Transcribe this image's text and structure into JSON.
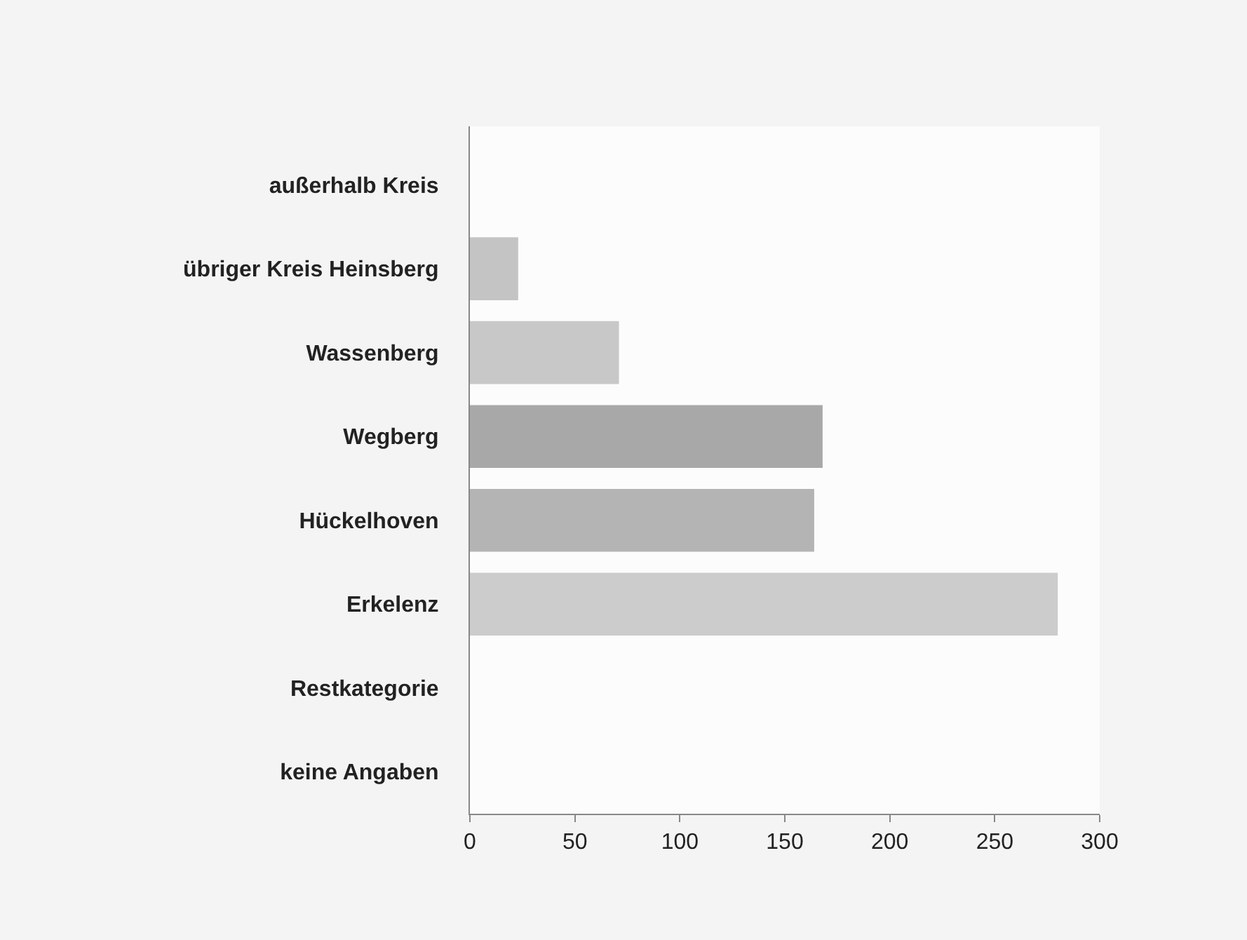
{
  "chart_data": {
    "type": "bar",
    "orientation": "horizontal",
    "categories": [
      "außerhalb Kreis",
      "übriger Kreis Heinsberg",
      "Wassenberg",
      "Wegberg",
      "Hückelhoven",
      "Erkelenz",
      "Restkategorie",
      "keine Angaben"
    ],
    "values": [
      0,
      23,
      71,
      168,
      164,
      280,
      0,
      0
    ],
    "colors": [
      "#5a5a5a",
      "#c4c4c4",
      "#c8c8c8",
      "#a8a8a8",
      "#b4b4b4",
      "#cccccc",
      "#8a8a8a",
      "#4a4a4a"
    ],
    "xlim": [
      0,
      300
    ],
    "xticks": [
      0,
      50,
      100,
      150,
      200,
      250,
      300
    ]
  }
}
